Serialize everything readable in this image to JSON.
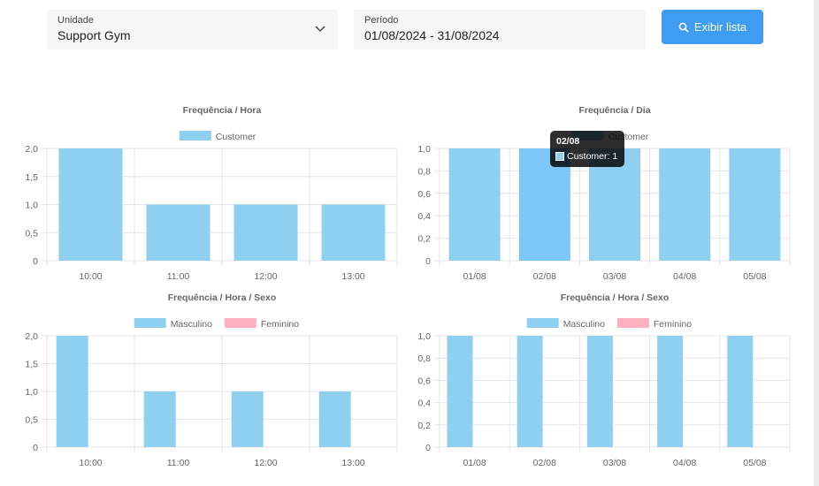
{
  "filters": {
    "unit": {
      "label": "Unidade",
      "value": "Support Gym"
    },
    "period": {
      "label": "Período",
      "value": "01/08/2024 - 31/08/2024"
    },
    "button_label": "Exibir lista"
  },
  "colors": {
    "customer": "#8fd0f1",
    "highlight": "#7ec6f7",
    "female": "#ffb1c1",
    "button": "#3e9cf3"
  },
  "chart_data": [
    {
      "type": "bar",
      "title": "Frequência / Hora",
      "categories": [
        "10:00",
        "11:00",
        "12:00",
        "13:00"
      ],
      "series": [
        {
          "name": "Customer",
          "values": [
            2,
            1,
            1,
            1
          ]
        }
      ],
      "ylim": [
        0,
        2
      ],
      "yticks": [
        "0",
        "0,5",
        "1,0",
        "1,5",
        "2,0"
      ],
      "ytick_values": [
        0,
        0.5,
        1.0,
        1.5,
        2.0
      ],
      "legend": "top",
      "grid": true
    },
    {
      "type": "bar",
      "title": "Frequência / Dia",
      "categories": [
        "01/08",
        "02/08",
        "03/08",
        "04/08",
        "05/08"
      ],
      "series": [
        {
          "name": "Customer",
          "values": [
            1,
            1,
            1,
            1,
            1
          ]
        }
      ],
      "ylim": [
        0,
        1
      ],
      "yticks": [
        "0",
        "0,2",
        "0,4",
        "0,6",
        "0,8",
        "1,0"
      ],
      "ytick_values": [
        0,
        0.2,
        0.4,
        0.6,
        0.8,
        1.0
      ],
      "legend": "top",
      "grid": true,
      "tooltip": {
        "title": "02/08",
        "label": "Customer: 1",
        "index": 1
      }
    },
    {
      "type": "bar",
      "title": "Frequência / Hora / Sexo",
      "categories": [
        "10:00",
        "11:00",
        "12:00",
        "13:00"
      ],
      "series": [
        {
          "name": "Masculino",
          "values": [
            2,
            1,
            1,
            1
          ]
        },
        {
          "name": "Feminino",
          "values": [
            0,
            0,
            0,
            0
          ]
        }
      ],
      "ylim": [
        0,
        2
      ],
      "yticks": [
        "0",
        "0,5",
        "1,0",
        "1,5",
        "2,0"
      ],
      "ytick_values": [
        0,
        0.5,
        1.0,
        1.5,
        2.0
      ],
      "legend": "top",
      "grid": true
    },
    {
      "type": "bar",
      "title": "Frequência / Hora / Sexo",
      "categories": [
        "01/08",
        "02/08",
        "03/08",
        "04/08",
        "05/08"
      ],
      "series": [
        {
          "name": "Masculino",
          "values": [
            1,
            1,
            1,
            1,
            1
          ]
        },
        {
          "name": "Feminino",
          "values": [
            0,
            0,
            0,
            0,
            0
          ]
        }
      ],
      "ylim": [
        0,
        1
      ],
      "yticks": [
        "0",
        "0,2",
        "0,4",
        "0,6",
        "0,8",
        "1,0"
      ],
      "ytick_values": [
        0,
        0.2,
        0.4,
        0.6,
        0.8,
        1.0
      ],
      "legend": "top",
      "grid": true
    }
  ]
}
